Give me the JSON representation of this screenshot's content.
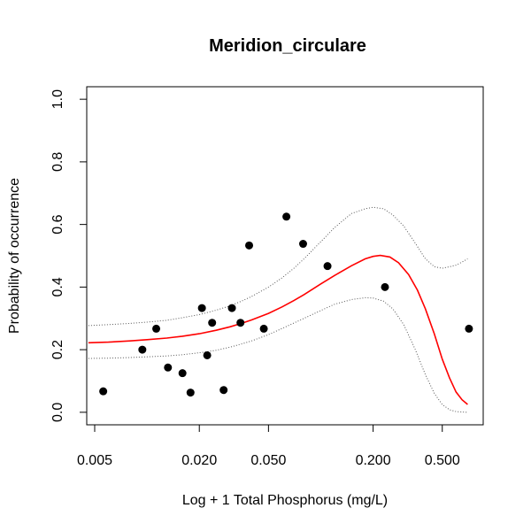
{
  "chart_data": {
    "type": "scatter",
    "title": "Meridion_circulare",
    "xlabel": "Log + 1 Total Phosphorus (mg/L)",
    "ylabel": "Probability of occurrence",
    "x_scale": "log",
    "xlim": [
      0.0045,
      0.86
    ],
    "ylim": [
      -0.04,
      1.04
    ],
    "x_ticks": [
      {
        "value": 0.005,
        "label": "0.005"
      },
      {
        "value": 0.02,
        "label": "0.020"
      },
      {
        "value": 0.05,
        "label": "0.050"
      },
      {
        "value": 0.2,
        "label": "0.200"
      },
      {
        "value": 0.5,
        "label": "0.500"
      }
    ],
    "y_ticks": [
      {
        "value": 0.0,
        "label": "0.0"
      },
      {
        "value": 0.2,
        "label": "0.2"
      },
      {
        "value": 0.4,
        "label": "0.4"
      },
      {
        "value": 0.6,
        "label": "0.6"
      },
      {
        "value": 0.8,
        "label": "0.8"
      },
      {
        "value": 1.0,
        "label": "1.0"
      }
    ],
    "grid": false,
    "points": [
      {
        "x": 0.0056,
        "y": 0.067
      },
      {
        "x": 0.0094,
        "y": 0.2
      },
      {
        "x": 0.0113,
        "y": 0.267
      },
      {
        "x": 0.0132,
        "y": 0.143
      },
      {
        "x": 0.016,
        "y": 0.125
      },
      {
        "x": 0.0178,
        "y": 0.063
      },
      {
        "x": 0.0207,
        "y": 0.333
      },
      {
        "x": 0.0222,
        "y": 0.182
      },
      {
        "x": 0.0237,
        "y": 0.286
      },
      {
        "x": 0.0276,
        "y": 0.071
      },
      {
        "x": 0.0308,
        "y": 0.333
      },
      {
        "x": 0.0345,
        "y": 0.286
      },
      {
        "x": 0.0387,
        "y": 0.533
      },
      {
        "x": 0.047,
        "y": 0.267
      },
      {
        "x": 0.0634,
        "y": 0.625
      },
      {
        "x": 0.0791,
        "y": 0.538
      },
      {
        "x": 0.1093,
        "y": 0.467
      },
      {
        "x": 0.234,
        "y": 0.4
      },
      {
        "x": 0.712,
        "y": 0.267
      }
    ],
    "fit_curve": {
      "color": "#ff0000",
      "x": [
        0.0046,
        0.006,
        0.008,
        0.01,
        0.013,
        0.016,
        0.02,
        0.025,
        0.03,
        0.035,
        0.04,
        0.05,
        0.06,
        0.07,
        0.08,
        0.1,
        0.12,
        0.15,
        0.18,
        0.2,
        0.22,
        0.25,
        0.28,
        0.32,
        0.36,
        0.4,
        0.45,
        0.5,
        0.55,
        0.6,
        0.65,
        0.7
      ],
      "y": [
        0.222,
        0.224,
        0.228,
        0.232,
        0.237,
        0.243,
        0.251,
        0.262,
        0.273,
        0.284,
        0.295,
        0.316,
        0.337,
        0.357,
        0.376,
        0.41,
        0.437,
        0.468,
        0.49,
        0.498,
        0.501,
        0.496,
        0.478,
        0.44,
        0.39,
        0.33,
        0.25,
        0.17,
        0.11,
        0.065,
        0.04,
        0.025
      ]
    },
    "upper_band": {
      "color": "#555555",
      "style": "dotted",
      "x": [
        0.0046,
        0.006,
        0.008,
        0.01,
        0.013,
        0.016,
        0.02,
        0.025,
        0.03,
        0.035,
        0.04,
        0.05,
        0.06,
        0.07,
        0.08,
        0.1,
        0.12,
        0.15,
        0.18,
        0.2,
        0.23,
        0.26,
        0.3,
        0.35,
        0.4,
        0.45,
        0.5,
        0.55,
        0.6,
        0.65,
        0.7
      ],
      "y": [
        0.277,
        0.28,
        0.284,
        0.288,
        0.294,
        0.302,
        0.312,
        0.326,
        0.34,
        0.355,
        0.37,
        0.4,
        0.43,
        0.46,
        0.49,
        0.545,
        0.59,
        0.635,
        0.65,
        0.655,
        0.65,
        0.63,
        0.595,
        0.54,
        0.49,
        0.465,
        0.46,
        0.465,
        0.47,
        0.48,
        0.49
      ]
    },
    "lower_band": {
      "color": "#555555",
      "style": "dotted",
      "x": [
        0.0046,
        0.006,
        0.008,
        0.01,
        0.013,
        0.016,
        0.02,
        0.025,
        0.03,
        0.035,
        0.04,
        0.05,
        0.06,
        0.07,
        0.08,
        0.1,
        0.12,
        0.15,
        0.18,
        0.2,
        0.23,
        0.26,
        0.3,
        0.35,
        0.4,
        0.45,
        0.5,
        0.55,
        0.6,
        0.65,
        0.7
      ],
      "y": [
        0.172,
        0.173,
        0.175,
        0.177,
        0.18,
        0.184,
        0.19,
        0.198,
        0.208,
        0.218,
        0.228,
        0.248,
        0.268,
        0.285,
        0.3,
        0.325,
        0.345,
        0.36,
        0.366,
        0.365,
        0.355,
        0.33,
        0.28,
        0.2,
        0.12,
        0.06,
        0.025,
        0.008,
        0.002,
        0.001,
        0.0
      ]
    }
  }
}
